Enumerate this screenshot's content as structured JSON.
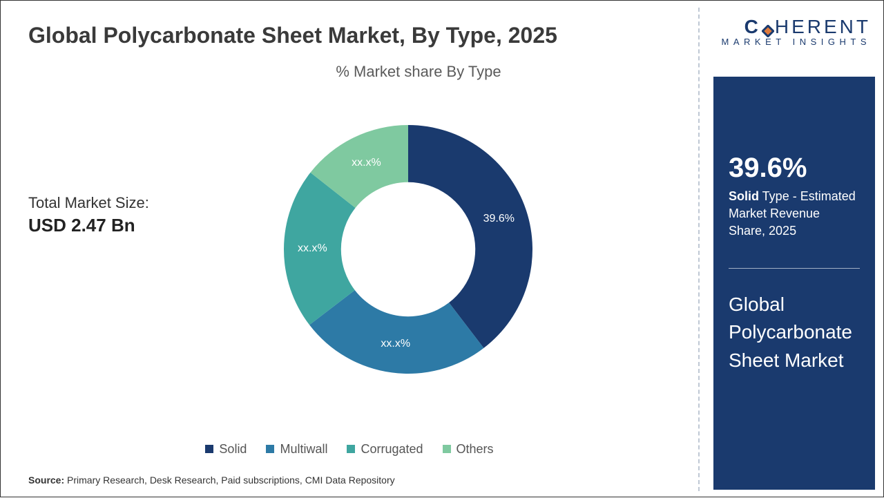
{
  "title": "Global Polycarbonate Sheet Market, By Type, 2025",
  "chart": {
    "type": "donut",
    "subtitle": "% Market share By Type",
    "inner_radius_pct": 54,
    "background_color": "#ffffff",
    "segments": [
      {
        "name": "Solid",
        "value": 39.6,
        "label": "39.6%",
        "color": "#1a3a6e"
      },
      {
        "name": "Multiwall",
        "value": 25.0,
        "label": "xx.x%",
        "color": "#2d7aa6"
      },
      {
        "name": "Corrugated",
        "value": 21.0,
        "label": "xx.x%",
        "color": "#3fa6a0"
      },
      {
        "name": "Others",
        "value": 14.4,
        "label": "xx.x%",
        "color": "#7fc9a0"
      }
    ],
    "label_color": "#ffffff",
    "label_fontsize": 16,
    "start_angle_deg": -90
  },
  "market_size": {
    "label": "Total Market Size:",
    "value": "USD 2.47 Bn"
  },
  "legend": {
    "items": [
      "Solid",
      "Multiwall",
      "Corrugated",
      "Others"
    ],
    "colors": [
      "#1a3a6e",
      "#2d7aa6",
      "#3fa6a0",
      "#7fc9a0"
    ],
    "fontsize": 18,
    "text_color": "#555555"
  },
  "source": {
    "prefix": "Source:",
    "text": " Primary Research, Desk Research, Paid subscriptions, CMI Data Repository"
  },
  "logo": {
    "brand_left": "C",
    "brand_right": "HERENT",
    "tagline": "MARKET INSIGHTS",
    "dot_colors": {
      "outer": "#1a3a6e",
      "inner": "#e07b3c"
    }
  },
  "side": {
    "stat": "39.6%",
    "desc_bold": "Solid",
    "desc_rest": " Type - Estimated Market Revenue Share, 2025",
    "title": "Global Polycarbonate Sheet Market",
    "bg_color": "#1a3a6e",
    "text_color": "#ffffff"
  }
}
